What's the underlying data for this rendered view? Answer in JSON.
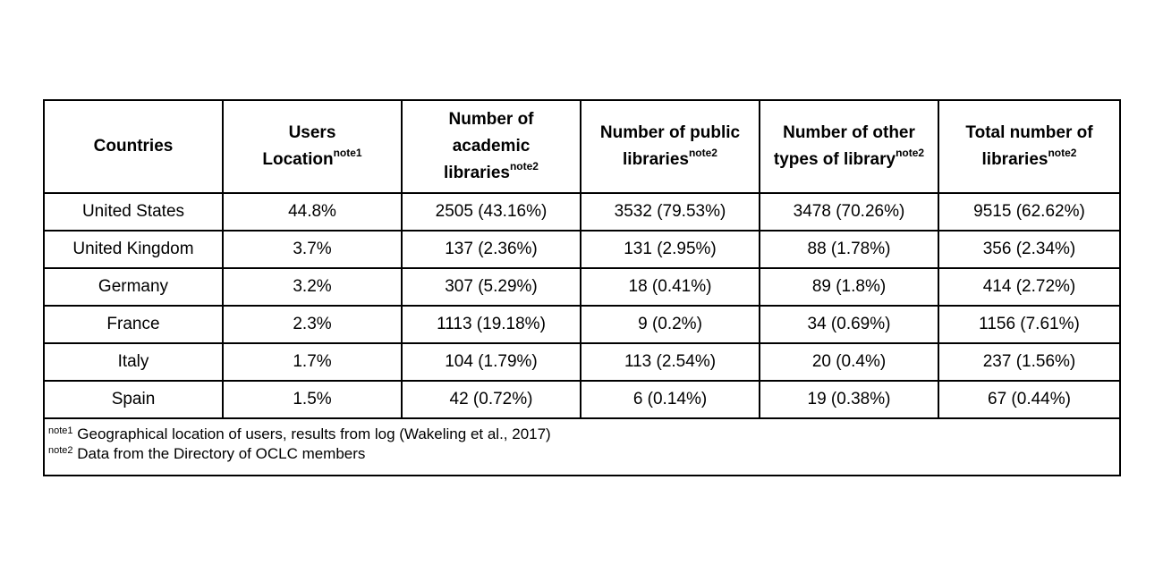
{
  "table": {
    "headers": [
      {
        "label": "Countries",
        "note": ""
      },
      {
        "label": "Users Location",
        "note": "note1"
      },
      {
        "label": "Number of academic libraries",
        "note": "note2"
      },
      {
        "label": "Number of public libraries",
        "note": "note2"
      },
      {
        "label": "Number of other types of library",
        "note": "note2"
      },
      {
        "label": "Total number of libraries",
        "note": "note2"
      }
    ],
    "rows": [
      [
        "United States",
        "44.8%",
        "2505 (43.16%)",
        "3532 (79.53%)",
        "3478 (70.26%)",
        "9515 (62.62%)"
      ],
      [
        "United Kingdom",
        "3.7%",
        "137 (2.36%)",
        "131 (2.95%)",
        "88 (1.78%)",
        "356 (2.34%)"
      ],
      [
        "Germany",
        "3.2%",
        "307 (5.29%)",
        "18 (0.41%)",
        "89 (1.8%)",
        "414 (2.72%)"
      ],
      [
        "France",
        "2.3%",
        "1113 (19.18%)",
        "9 (0.2%)",
        "34 (0.69%)",
        "1156 (7.61%)"
      ],
      [
        "Italy",
        "1.7%",
        "104 (1.79%)",
        "113 (2.54%)",
        "20 (0.4%)",
        "237 (1.56%)"
      ],
      [
        "Spain",
        "1.5%",
        "42 (0.72%)",
        "6 (0.14%)",
        "19 (0.38%)",
        "67 (0.44%)"
      ]
    ],
    "footnotes": [
      {
        "mark": "note1",
        "text": "Geographical location of users, results from log (Wakeling et al., 2017)"
      },
      {
        "mark": "note2",
        "text": "Data from the Directory of OCLC members"
      }
    ]
  }
}
